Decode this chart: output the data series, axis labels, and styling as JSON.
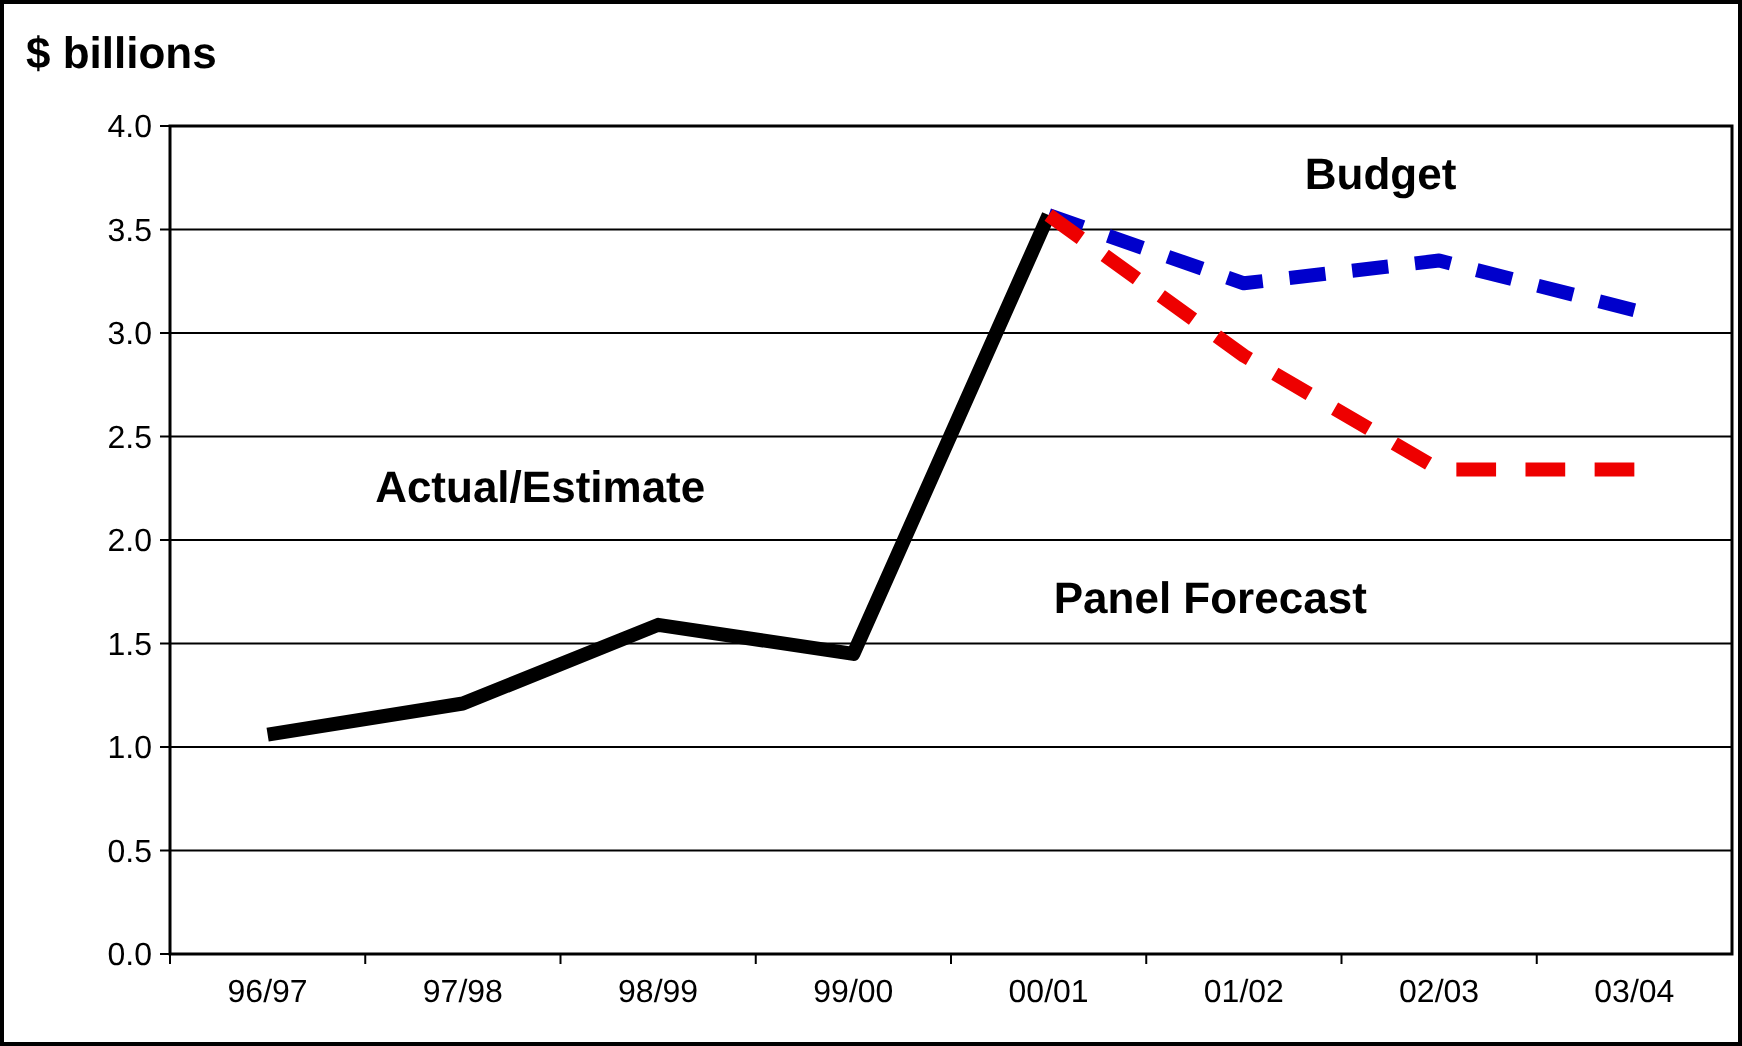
{
  "chart_data": {
    "type": "line",
    "ylabel": "$ billions",
    "categories": [
      "96/97",
      "97/98",
      "98/99",
      "99/00",
      "00/01",
      "01/02",
      "02/03",
      "03/04"
    ],
    "series": [
      {
        "name": "Actual/Estimate",
        "color": "#000000",
        "line_style": "solid",
        "values": [
          1.06,
          1.21,
          1.59,
          1.45,
          3.57,
          null,
          null,
          null
        ]
      },
      {
        "name": "Budget",
        "color": "#0000cc",
        "line_style": "dashed",
        "values": [
          null,
          null,
          null,
          null,
          3.57,
          3.24,
          3.35,
          3.11
        ]
      },
      {
        "name": "Panel Forecast",
        "color": "#ee0000",
        "line_style": "dashed",
        "values": [
          null,
          null,
          null,
          null,
          3.57,
          2.89,
          2.34,
          2.34
        ]
      }
    ],
    "ylim": [
      0,
      4
    ],
    "yticks": [
      {
        "value": 0,
        "label": "0.0"
      },
      {
        "value": 0.5,
        "label": "0.5"
      },
      {
        "value": 1,
        "label": "1.0"
      },
      {
        "value": 1.5,
        "label": "1.5"
      },
      {
        "value": 2,
        "label": "2.0"
      },
      {
        "value": 2.5,
        "label": "2.5"
      },
      {
        "value": 3,
        "label": "3.0"
      },
      {
        "value": 3.5,
        "label": "3.5"
      },
      {
        "value": 4,
        "label": "4.0"
      }
    ],
    "grid": "y",
    "marker": "none"
  }
}
